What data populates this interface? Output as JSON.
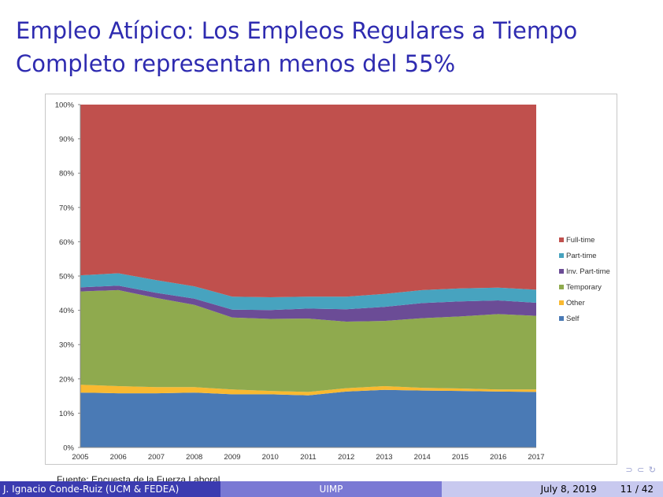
{
  "slide": {
    "title_line1": "Empleo Atípico: Los Empleos Regulares a Tiempo",
    "title_line2": "Completo representan menos del 55%",
    "source": "Fuente: Encuesta de la Fuerza Laboral"
  },
  "footer": {
    "author": "J. Ignacio Conde-Ruiz (UCM & FEDEA)",
    "institution": "UIMP",
    "date": "July 8, 2019",
    "page": "11 / 42"
  },
  "nav_symbols": "⊃ ⊂ ↻",
  "chart_data": {
    "type": "area",
    "stacked": true,
    "title": "",
    "xlabel": "",
    "ylabel": "",
    "ylim": [
      0,
      100
    ],
    "y_ticks": [
      "0%",
      "10%",
      "20%",
      "30%",
      "40%",
      "50%",
      "60%",
      "70%",
      "80%",
      "90%",
      "100%"
    ],
    "x": [
      "2005",
      "2006",
      "2007",
      "2008",
      "2009",
      "2010",
      "2011",
      "2012",
      "2013",
      "2014",
      "2015",
      "2016",
      "2017"
    ],
    "grid": false,
    "legend_position": "right",
    "series": [
      {
        "name": "Self",
        "color": "#4a7ab5",
        "values": [
          16.0,
          15.8,
          15.8,
          16.0,
          15.5,
          15.5,
          15.2,
          16.3,
          16.8,
          16.6,
          16.5,
          16.3,
          16.2
        ]
      },
      {
        "name": "Other",
        "color": "#f9b930",
        "values": [
          2.3,
          2.1,
          1.8,
          1.6,
          1.4,
          1.0,
          1.0,
          1.0,
          1.1,
          0.8,
          0.7,
          0.6,
          0.7
        ]
      },
      {
        "name": "Temporary",
        "color": "#8faa4e",
        "values": [
          27.2,
          28.0,
          26.0,
          24.0,
          21.0,
          21.0,
          21.4,
          19.4,
          19.0,
          20.3,
          21.0,
          22.0,
          21.5
        ]
      },
      {
        "name": "Inv. Part-time",
        "color": "#6b4c96",
        "values": [
          1.2,
          1.3,
          1.5,
          1.8,
          2.3,
          2.6,
          2.9,
          3.6,
          4.1,
          4.4,
          4.4,
          4.0,
          3.8
        ]
      },
      {
        "name": "Part-time",
        "color": "#47a3bf",
        "values": [
          3.5,
          3.6,
          3.7,
          3.6,
          3.8,
          3.7,
          3.5,
          3.7,
          3.8,
          3.8,
          3.8,
          3.7,
          3.8
        ]
      },
      {
        "name": "Full-time",
        "color": "#c0504d",
        "values": [
          49.8,
          49.2,
          51.2,
          53.0,
          56.0,
          56.2,
          56.0,
          56.0,
          55.2,
          54.1,
          53.6,
          53.4,
          54.0
        ]
      }
    ],
    "legend_order": [
      "Full-time",
      "Part-time",
      "Inv. Part-time",
      "Temporary",
      "Other",
      "Self"
    ]
  }
}
